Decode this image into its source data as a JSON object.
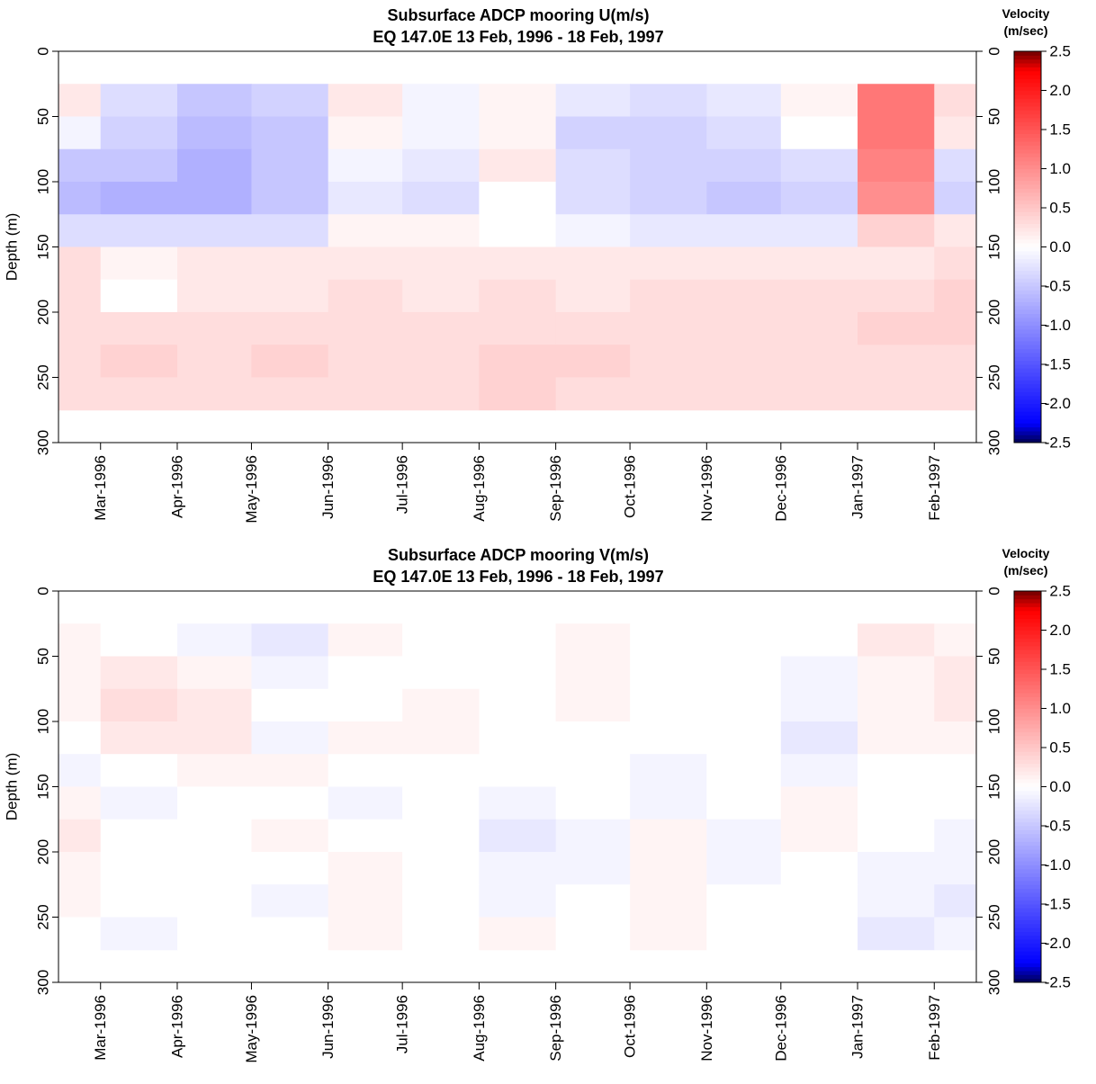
{
  "chart_data": [
    {
      "type": "heatmap",
      "title": "Subsurface ADCP mooring U(m/s)",
      "subtitle": "EQ 147.0E      13 Feb, 1996 - 18 Feb, 1997",
      "ylabel": "Depth (m)",
      "xlim": [
        "1996-02-13",
        "1997-02-18"
      ],
      "xticks": [
        {
          "value": "1996-03-01",
          "label": "Mar-1996"
        },
        {
          "value": "1996-04-01",
          "label": "Apr-1996"
        },
        {
          "value": "1996-05-01",
          "label": "May-1996"
        },
        {
          "value": "1996-06-01",
          "label": "Jun-1996"
        },
        {
          "value": "1996-07-01",
          "label": "Jul-1996"
        },
        {
          "value": "1996-08-01",
          "label": "Aug-1996"
        },
        {
          "value": "1996-09-01",
          "label": "Sep-1996"
        },
        {
          "value": "1996-10-01",
          "label": "Oct-1996"
        },
        {
          "value": "1996-11-01",
          "label": "Nov-1996"
        },
        {
          "value": "1996-12-01",
          "label": "Dec-1996"
        },
        {
          "value": "1997-01-01",
          "label": "Jan-1997"
        },
        {
          "value": "1997-02-01",
          "label": "Feb-1997"
        }
      ],
      "x_bins": [
        "1996-02-13",
        "1996-03-01",
        "1996-04-01",
        "1996-05-01",
        "1996-06-01",
        "1996-07-01",
        "1996-08-01",
        "1996-09-01",
        "1996-10-01",
        "1996-11-01",
        "1996-12-01",
        "1997-01-01",
        "1997-02-01",
        "1997-02-18"
      ],
      "y_bins": [
        25,
        50,
        75,
        100,
        125,
        150,
        175,
        200,
        225,
        250,
        275
      ],
      "ylim": [
        0,
        300
      ],
      "yticks": [
        0,
        50,
        100,
        150,
        200,
        250,
        300
      ],
      "values": [
        [
          0.2,
          -0.3,
          -0.5,
          -0.4,
          0.2,
          -0.1,
          0.1,
          -0.2,
          -0.3,
          -0.2,
          0.1,
          1.2,
          0.3
        ],
        [
          -0.1,
          -0.4,
          -0.6,
          -0.5,
          0.1,
          -0.1,
          0.1,
          -0.4,
          -0.4,
          -0.3,
          0,
          1.2,
          0.2
        ],
        [
          -0.5,
          -0.5,
          -0.7,
          -0.5,
          -0.1,
          -0.2,
          0.2,
          -0.3,
          -0.4,
          -0.4,
          -0.3,
          1.1,
          -0.3
        ],
        [
          -0.6,
          -0.7,
          -0.7,
          -0.5,
          -0.2,
          -0.3,
          0,
          -0.3,
          -0.4,
          -0.5,
          -0.4,
          1.0,
          -0.4
        ],
        [
          -0.3,
          -0.3,
          -0.3,
          -0.3,
          0.1,
          0.1,
          0,
          -0.1,
          -0.2,
          -0.2,
          -0.2,
          0.4,
          0.2
        ],
        [
          0.3,
          0.1,
          0.2,
          0.2,
          0.2,
          0.2,
          0.2,
          0.2,
          0.2,
          0.2,
          0.2,
          0.2,
          0.3
        ],
        [
          0.3,
          0,
          0.2,
          0.2,
          0.3,
          0.2,
          0.3,
          0.2,
          0.3,
          0.3,
          0.3,
          0.3,
          0.4
        ],
        [
          0.3,
          0.3,
          0.3,
          0.3,
          0.3,
          0.3,
          0.3,
          0.3,
          0.3,
          0.3,
          0.3,
          0.4,
          0.4
        ],
        [
          0.3,
          0.4,
          0.3,
          0.4,
          0.3,
          0.3,
          0.4,
          0.4,
          0.3,
          0.3,
          0.3,
          0.3,
          0.3
        ],
        [
          0.3,
          0.3,
          0.3,
          0.3,
          0.3,
          0.3,
          0.4,
          0.3,
          0.3,
          0.3,
          0.3,
          0.3,
          0.3
        ]
      ],
      "colorbar": {
        "title": "Velocity",
        "unit": "(m/sec)",
        "zlim": [
          -2.5,
          2.5
        ],
        "zticks": [
          -2.5,
          {
            "value": -2,
            "label": "-2.0"
          },
          -1.5,
          {
            "value": -1,
            "label": "-1.0"
          },
          -0.5,
          {
            "value": 0,
            "label": "0.0"
          },
          0.5,
          {
            "value": 1,
            "label": "1.0"
          },
          1.5,
          {
            "value": 2,
            "label": "2.0"
          },
          2.5
        ],
        "colorscale": [
          [
            -2.5,
            "#000050"
          ],
          [
            -2.25,
            "#0000ff"
          ],
          [
            0,
            "#ffffff"
          ],
          [
            2.25,
            "#ff0000"
          ],
          [
            2.5,
            "#700000"
          ]
        ]
      }
    },
    {
      "type": "heatmap",
      "title": "Subsurface ADCP mooring V(m/s)",
      "subtitle": "EQ 147.0E      13 Feb, 1996 - 18 Feb, 1997",
      "ylabel": "Depth (m)",
      "xlim": [
        "1996-02-13",
        "1997-02-18"
      ],
      "xticks": [
        {
          "value": "1996-03-01",
          "label": "Mar-1996"
        },
        {
          "value": "1996-04-01",
          "label": "Apr-1996"
        },
        {
          "value": "1996-05-01",
          "label": "May-1996"
        },
        {
          "value": "1996-06-01",
          "label": "Jun-1996"
        },
        {
          "value": "1996-07-01",
          "label": "Jul-1996"
        },
        {
          "value": "1996-08-01",
          "label": "Aug-1996"
        },
        {
          "value": "1996-09-01",
          "label": "Sep-1996"
        },
        {
          "value": "1996-10-01",
          "label": "Oct-1996"
        },
        {
          "value": "1996-11-01",
          "label": "Nov-1996"
        },
        {
          "value": "1996-12-01",
          "label": "Dec-1996"
        },
        {
          "value": "1997-01-01",
          "label": "Jan-1997"
        },
        {
          "value": "1997-02-01",
          "label": "Feb-1997"
        }
      ],
      "x_bins": [
        "1996-02-13",
        "1996-03-01",
        "1996-04-01",
        "1996-05-01",
        "1996-06-01",
        "1996-07-01",
        "1996-08-01",
        "1996-09-01",
        "1996-10-01",
        "1996-11-01",
        "1996-12-01",
        "1997-01-01",
        "1997-02-01",
        "1997-02-18"
      ],
      "y_bins": [
        25,
        50,
        75,
        100,
        125,
        150,
        175,
        200,
        225,
        250,
        275
      ],
      "ylim": [
        0,
        300
      ],
      "yticks": [
        0,
        50,
        100,
        150,
        200,
        250,
        300
      ],
      "values": [
        [
          0.1,
          0,
          -0.1,
          -0.2,
          0.1,
          0,
          0,
          0.1,
          0,
          0,
          0,
          0.2,
          0.1
        ],
        [
          0.1,
          0.2,
          0.1,
          -0.1,
          0,
          0,
          0,
          0.1,
          0,
          0,
          -0.1,
          0.1,
          0.2
        ],
        [
          0.1,
          0.3,
          0.2,
          0,
          0,
          0.1,
          0,
          0.1,
          0,
          0,
          -0.1,
          0.1,
          0.2
        ],
        [
          0,
          0.2,
          0.2,
          -0.1,
          0.1,
          0.1,
          0,
          0,
          0,
          0,
          -0.2,
          0.1,
          0.1
        ],
        [
          -0.1,
          0,
          0.1,
          0.1,
          0,
          0,
          0,
          0,
          -0.1,
          0,
          -0.1,
          0,
          0
        ],
        [
          0.1,
          -0.1,
          0,
          0,
          -0.1,
          0,
          -0.1,
          0,
          -0.1,
          0,
          0.1,
          0,
          0
        ],
        [
          0.2,
          0,
          0,
          0.1,
          0,
          0,
          -0.2,
          -0.1,
          0.1,
          -0.1,
          0.1,
          0,
          -0.1
        ],
        [
          0.1,
          0,
          0,
          0,
          0.1,
          0,
          -0.1,
          -0.1,
          0.1,
          -0.1,
          0,
          -0.1,
          -0.1
        ],
        [
          0.1,
          0,
          0,
          -0.1,
          0.1,
          0,
          -0.1,
          0,
          0.1,
          0,
          0,
          -0.1,
          -0.2
        ],
        [
          0,
          -0.1,
          0,
          0,
          0.1,
          0,
          0.1,
          0,
          0.1,
          0,
          0,
          -0.2,
          -0.1
        ]
      ],
      "colorbar": {
        "title": "Velocity",
        "unit": "(m/sec)",
        "zlim": [
          -2.5,
          2.5
        ],
        "zticks": [
          -2.5,
          {
            "value": -2,
            "label": "-2.0"
          },
          -1.5,
          {
            "value": -1,
            "label": "-1.0"
          },
          -0.5,
          {
            "value": 0,
            "label": "0.0"
          },
          0.5,
          {
            "value": 1,
            "label": "1.0"
          },
          1.5,
          {
            "value": 2,
            "label": "2.0"
          },
          2.5
        ],
        "colorscale": [
          [
            -2.5,
            "#000050"
          ],
          [
            -2.25,
            "#0000ff"
          ],
          [
            0,
            "#ffffff"
          ],
          [
            2.25,
            "#ff0000"
          ],
          [
            2.5,
            "#700000"
          ]
        ]
      }
    }
  ]
}
